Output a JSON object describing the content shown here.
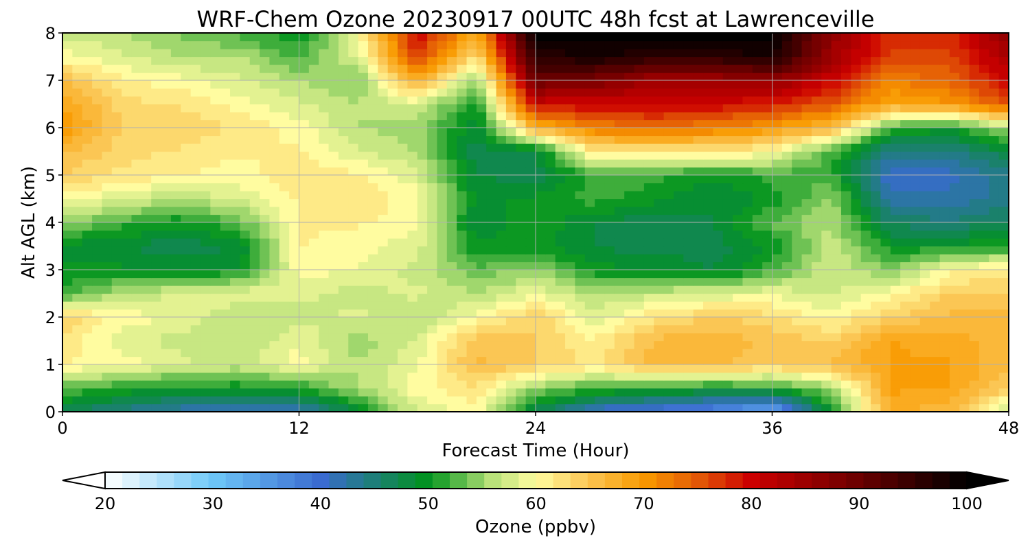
{
  "chart_data": {
    "type": "heatmap",
    "title": "WRF-Chem Ozone  20230917 00UTC 48h fcst at Lawrenceville",
    "xlabel": "Forecast Time (Hour)",
    "ylabel": "Alt AGL (km)",
    "xlim": [
      0,
      48
    ],
    "ylim": [
      0,
      8
    ],
    "x_ticks": [
      0,
      12,
      24,
      36,
      48
    ],
    "y_ticks": [
      0,
      1,
      2,
      3,
      4,
      5,
      6,
      7,
      8
    ],
    "grid": true,
    "x": [
      0,
      3,
      6,
      9,
      12,
      15,
      18,
      21,
      24,
      27,
      30,
      33,
      36,
      39,
      42,
      45,
      48
    ],
    "y": [
      0,
      0.5,
      1,
      1.5,
      2,
      2.5,
      3,
      3.5,
      4,
      4.5,
      5,
      5.5,
      6,
      6.5,
      7,
      7.5,
      8
    ],
    "z": [
      [
        47,
        44,
        42,
        40,
        41,
        48,
        58,
        60,
        47,
        40,
        38,
        36,
        32,
        50,
        68,
        66,
        56
      ],
      [
        53,
        51,
        50,
        50,
        51,
        56,
        60,
        62,
        55,
        52,
        51,
        50,
        51,
        55,
        69,
        69,
        64
      ],
      [
        61,
        60,
        58,
        57,
        60,
        56,
        59,
        66,
        64,
        62,
        66,
        66,
        64,
        66,
        69,
        69,
        66
      ],
      [
        62,
        58,
        57,
        56,
        59,
        55,
        58,
        65,
        64,
        61,
        66,
        67,
        65,
        64,
        69,
        68,
        66
      ],
      [
        64,
        60,
        59,
        56,
        57,
        58,
        56,
        60,
        64,
        58,
        62,
        64,
        63,
        60,
        64,
        66,
        66
      ],
      [
        52,
        56,
        58,
        59,
        58,
        57,
        58,
        56,
        59,
        56,
        57,
        58,
        59,
        57,
        60,
        64,
        64
      ],
      [
        50,
        50,
        49,
        50,
        60,
        59,
        57,
        53,
        55,
        50,
        50,
        48,
        52,
        58,
        54,
        60,
        62
      ],
      [
        49,
        48,
        47,
        48,
        61,
        60,
        58,
        50,
        50,
        48,
        47,
        47,
        50,
        57,
        50,
        50,
        51
      ],
      [
        55,
        52,
        50,
        53,
        61,
        61,
        60,
        48,
        51,
        48,
        47,
        48,
        53,
        56,
        46,
        45,
        47
      ],
      [
        60,
        58,
        56,
        58,
        61,
        62,
        60,
        49,
        50,
        52,
        50,
        48,
        50,
        55,
        42,
        42,
        44
      ],
      [
        64,
        62,
        61,
        60,
        62,
        61,
        58,
        48,
        47,
        52,
        52,
        50,
        52,
        52,
        40,
        41,
        44
      ],
      [
        66,
        63,
        62,
        61,
        61,
        58,
        56,
        47,
        48,
        62,
        62,
        62,
        60,
        52,
        44,
        44,
        48
      ],
      [
        70,
        64,
        64,
        62,
        60,
        56,
        55,
        48,
        67,
        72,
        73,
        72,
        70,
        66,
        52,
        50,
        56
      ],
      [
        69,
        63,
        62,
        60,
        58,
        56,
        58,
        50,
        80,
        80,
        81,
        80,
        78,
        75,
        68,
        70,
        75
      ],
      [
        66,
        61,
        60,
        58,
        56,
        54,
        68,
        54,
        90,
        88,
        84,
        84,
        86,
        80,
        72,
        74,
        80
      ],
      [
        60,
        58,
        56,
        56,
        52,
        58,
        77,
        62,
        96,
        98,
        96,
        96,
        98,
        85,
        76,
        76,
        84
      ],
      [
        57,
        56,
        54,
        52,
        50,
        60,
        80,
        68,
        100,
        100,
        100,
        100,
        100,
        86,
        78,
        78,
        86
      ]
    ],
    "colorbar": {
      "label": "Ozone  (ppbv)",
      "min": 20,
      "max": 100,
      "ticks": [
        20,
        30,
        40,
        50,
        60,
        70,
        80,
        90,
        100
      ],
      "extend": "both",
      "stops": [
        {
          "v": 20,
          "c": "#ffffff"
        },
        {
          "v": 30,
          "c": "#6ec8f8"
        },
        {
          "v": 40,
          "c": "#3a6bd0"
        },
        {
          "v": 50,
          "c": "#00931c"
        },
        {
          "v": 56,
          "c": "#b9e27a"
        },
        {
          "v": 60,
          "c": "#fffca0"
        },
        {
          "v": 65,
          "c": "#fbc451"
        },
        {
          "v": 70,
          "c": "#f99a00"
        },
        {
          "v": 75,
          "c": "#e35a06"
        },
        {
          "v": 80,
          "c": "#cc0000"
        },
        {
          "v": 90,
          "c": "#6a0000"
        },
        {
          "v": 100,
          "c": "#000000"
        }
      ]
    }
  }
}
